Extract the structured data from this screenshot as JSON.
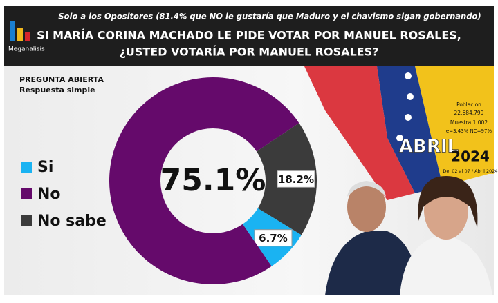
{
  "chart_data": {
    "type": "donut",
    "brand": "Meganalisis",
    "subtitle": "Solo a los Opositores (81.4% que NO le gustaría que Maduro y el chavismo sigan gobernando)",
    "title": [
      "SI MARÍA CORINA MACHADO LE PIDE VOTAR POR MANUEL ROSALES,",
      "¿USTED VOTARÍA POR MANUEL ROSALES?"
    ],
    "question_type": [
      "PREGUNTA ABIERTA",
      "Respuesta simple"
    ],
    "categories": [
      "Si",
      "No",
      "No sabe"
    ],
    "values": [
      6.7,
      75.1,
      18.2
    ],
    "value_labels": [
      "6.7%",
      "75.1%",
      "18.2%"
    ],
    "colors": [
      "#1ab3f2",
      "#650a6b",
      "#3b3b3b"
    ],
    "legend": "left",
    "info": [
      "Poblacion",
      "22,684,799",
      "Muestra 1,002",
      "e=3.43% NC=97%"
    ],
    "period": [
      "ABRIL",
      "2024",
      "Del 02 al 07 / Abril 2024"
    ]
  }
}
